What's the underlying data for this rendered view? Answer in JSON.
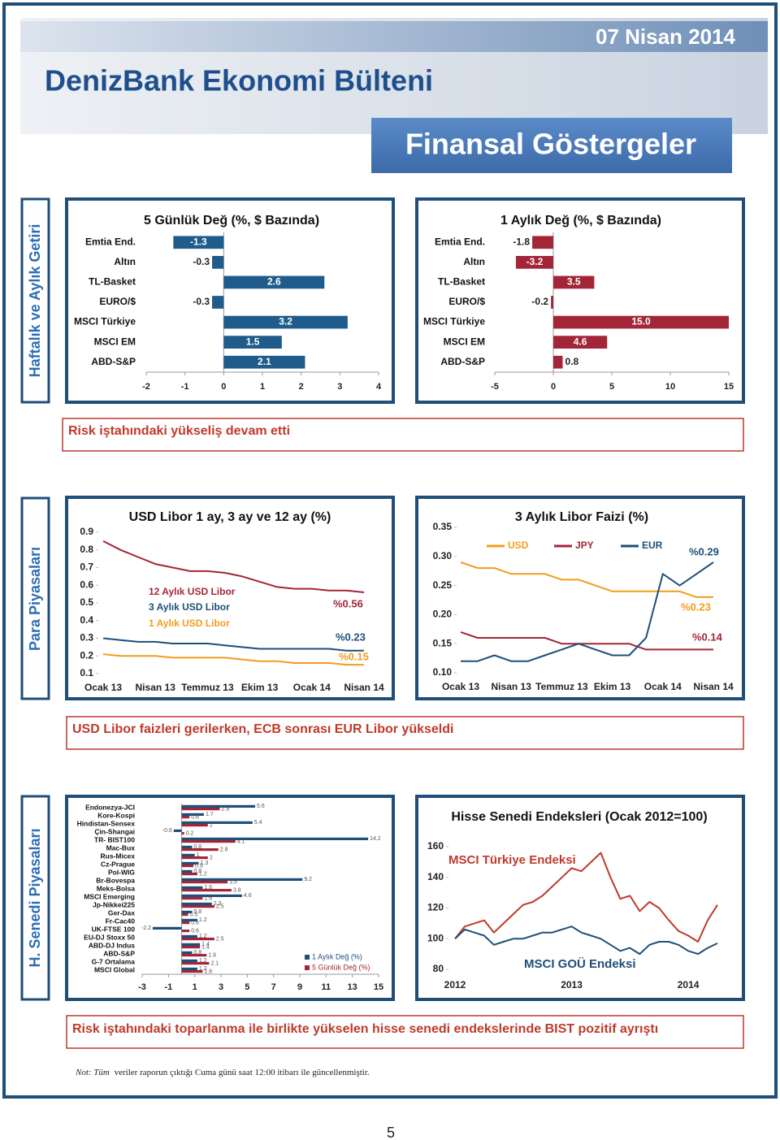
{
  "header": {
    "date": "07 Nisan 2014",
    "title": "DenizBank Ekonomi Bülteni",
    "subtitle": "Finansal Göstergeler"
  },
  "sections": [
    "Haftalık ve Aylık Getiri",
    "Para Piyasaları",
    "H. Senedi Piyasaları"
  ],
  "captions": [
    "Risk iştahındaki yükseliş devam etti",
    "USD Libor faizleri gerilerken, ECB sonrası EUR Libor yükseldi",
    "Risk iştahındaki toparlanma ile birlikte yükselen hisse senedi endekslerinde BIST pozitif ayrıştı"
  ],
  "chart_data": [
    {
      "type": "bar",
      "orientation": "horizontal",
      "title": "5 Günlük Değ (%, $ Bazında)",
      "categories": [
        "Emtia End.",
        "Altın",
        "TL-Basket",
        "EURO/$",
        "MSCI Türkiye",
        "MSCI EM",
        "ABD-S&P"
      ],
      "values": [
        -1.3,
        -0.3,
        2.6,
        -0.3,
        3.2,
        1.5,
        2.1
      ],
      "color": "#1f5c8b",
      "xlim": [
        -2,
        4
      ],
      "xticks": [
        -2,
        -1,
        0,
        1,
        2,
        3,
        4
      ]
    },
    {
      "type": "bar",
      "orientation": "horizontal",
      "title": "1 Aylık Değ (%, $ Bazında)",
      "categories": [
        "Emtia End.",
        "Altın",
        "TL-Basket",
        "EURO/$",
        "MSCI Türkiye",
        "MSCI EM",
        "ABD-S&P"
      ],
      "values": [
        -1.8,
        -3.2,
        3.5,
        -0.2,
        15,
        4.6,
        0.8
      ],
      "value_labels": [
        "-1.8",
        "-3.2",
        "3.5",
        "-0.2",
        "15.0",
        "4.6",
        "0.8"
      ],
      "color": "#a32638",
      "xlim": [
        -5,
        15
      ],
      "xticks": [
        -5,
        0,
        5,
        10,
        15
      ]
    },
    {
      "type": "line",
      "title": "USD Libor 1 ay, 3 ay ve 12 ay (%)",
      "categories": [
        "Ocak 13",
        null,
        null,
        "Nisan 13",
        null,
        null,
        "Temmuz 13",
        null,
        null,
        "Ekim 13",
        null,
        null,
        "Ocak 14",
        null,
        null,
        "Nisan 14"
      ],
      "series": [
        {
          "name": "12 Aylık USD Libor",
          "color": "#a32638",
          "values": [
            0.85,
            0.8,
            0.76,
            0.72,
            0.7,
            0.68,
            0.68,
            0.67,
            0.65,
            0.62,
            0.59,
            0.58,
            0.58,
            0.57,
            0.57,
            0.56
          ]
        },
        {
          "name": "3 Aylık USD Libor",
          "color": "#1f4e79",
          "values": [
            0.3,
            0.29,
            0.28,
            0.28,
            0.27,
            0.27,
            0.27,
            0.26,
            0.25,
            0.24,
            0.24,
            0.24,
            0.24,
            0.24,
            0.23,
            0.23
          ]
        },
        {
          "name": "1 Aylık USD Libor",
          "color": "#f39c1f",
          "values": [
            0.21,
            0.2,
            0.2,
            0.2,
            0.19,
            0.19,
            0.19,
            0.19,
            0.18,
            0.17,
            0.17,
            0.16,
            0.16,
            0.16,
            0.15,
            0.15
          ]
        }
      ],
      "annotations": [
        "%0.56",
        "%0.23",
        "%0.15"
      ],
      "ylim": [
        0.1,
        0.9
      ],
      "yticks": [
        0.1,
        0.2,
        0.3,
        0.4,
        0.5,
        0.6,
        0.7,
        0.8,
        0.9
      ]
    },
    {
      "type": "line",
      "title": "3 Aylık Libor Faizi (%)",
      "categories": [
        "Ocak 13",
        null,
        null,
        "Nisan 13",
        null,
        null,
        "Temmuz 13",
        null,
        null,
        "Ekim 13",
        null,
        null,
        "Ocak 14",
        null,
        null,
        "Nisan 14"
      ],
      "series": [
        {
          "name": "USD",
          "color": "#f39c1f",
          "values": [
            0.29,
            0.28,
            0.28,
            0.27,
            0.27,
            0.27,
            0.26,
            0.26,
            0.25,
            0.24,
            0.24,
            0.24,
            0.24,
            0.24,
            0.23,
            0.23
          ]
        },
        {
          "name": "JPY",
          "color": "#a32638",
          "values": [
            0.17,
            0.16,
            0.16,
            0.16,
            0.16,
            0.16,
            0.15,
            0.15,
            0.15,
            0.15,
            0.15,
            0.14,
            0.14,
            0.14,
            0.14,
            0.14
          ]
        },
        {
          "name": "EUR",
          "color": "#1f4e79",
          "values": [
            0.12,
            0.12,
            0.13,
            0.12,
            0.12,
            0.13,
            0.14,
            0.15,
            0.14,
            0.13,
            0.13,
            0.16,
            0.27,
            0.25,
            0.27,
            0.29
          ]
        }
      ],
      "annotations": [
        "%0.23",
        "%0.14",
        "%0.29"
      ],
      "ylim": [
        0.1,
        0.35
      ],
      "yticks": [
        {
          "value": 0.1,
          "label": "0.10"
        },
        0.15,
        {
          "value": 0.2,
          "label": "0.20"
        },
        0.25,
        {
          "value": 0.3,
          "label": "0.30"
        },
        0.35
      ]
    },
    {
      "type": "bar",
      "orientation": "horizontal",
      "categories": [
        "Endonezya-JCI",
        "Kore-Kospi",
        "Hindistan-Sensex",
        "Çin-Shangai",
        "TR- BIST100",
        "Mac-Bux",
        "Rus-Micex",
        "Cz-Prague",
        "Pol-WIG",
        "Br-Bovespa",
        "Meks-Bolsa",
        "MSCI Emerging",
        "Jp-Nikkei225",
        "Ger-Dax",
        "Fr-Cac40",
        "UK-FTSE 100",
        "EU-DJ Stoxx 50",
        "ABD-DJ Indus",
        "ABD-S&P",
        "G-7 Ortalama",
        "MSCI Global"
      ],
      "series": [
        {
          "name": "1 Aylık Değ (%)",
          "color": "#1f4e79",
          "values": [
            5.6,
            1.7,
            5.4,
            -0.6,
            14.2,
            0.8,
            1,
            1.3,
            0.8,
            9.2,
            1.6,
            4.6,
            2.3,
            0.8,
            1.2,
            -2.2,
            1.2,
            1.4,
            0.8,
            1.2,
            1.2
          ]
        },
        {
          "name": "5 Günlük Değ (%)",
          "color": "#a32638",
          "values": [
            2.9,
            0.6,
            2,
            0.2,
            4.1,
            2.8,
            2,
            0.9,
            1.2,
            3.5,
            3.8,
            1.6,
            2.5,
            0.5,
            0.6,
            0.6,
            2.5,
            1.4,
            1.9,
            2.1,
            1.6
          ]
        }
      ],
      "xlim": [
        -3,
        15
      ],
      "xticks": [
        -3,
        -1,
        1,
        3,
        5,
        7,
        9,
        11,
        13,
        15
      ]
    },
    {
      "type": "line",
      "title": "Hisse Senedi Endeksleri (Ocak 2012=100)",
      "categories": [
        "2012",
        null,
        null,
        null,
        null,
        null,
        null,
        null,
        null,
        null,
        null,
        null,
        "2013",
        null,
        null,
        null,
        null,
        null,
        null,
        null,
        null,
        null,
        null,
        null,
        "2014",
        null,
        null,
        null
      ],
      "series": [
        {
          "name": "MSCI Türkiye Endeksi",
          "color": "#c0392b",
          "values": [
            100,
            108,
            110,
            112,
            104,
            110,
            116,
            122,
            124,
            128,
            134,
            140,
            146,
            144,
            150,
            156,
            140,
            126,
            128,
            118,
            124,
            120,
            112,
            105,
            102,
            98,
            112,
            122
          ]
        },
        {
          "name": "MSCI GOÜ Endeksi",
          "color": "#1f4e79",
          "values": [
            100,
            106,
            104,
            102,
            96,
            98,
            100,
            100,
            102,
            104,
            104,
            106,
            108,
            104,
            102,
            100,
            96,
            92,
            94,
            90,
            96,
            98,
            98,
            96,
            92,
            90,
            94,
            97
          ]
        }
      ],
      "ylim": [
        80,
        160
      ],
      "yticks": [
        80,
        100,
        120,
        140,
        160
      ]
    }
  ],
  "note": {
    "label": "Not: Tüm",
    "text": "veriler raporun çıktığı Cuma günü saat 12:00 itibarı ile güncellenmiştir."
  },
  "page_number": "5"
}
